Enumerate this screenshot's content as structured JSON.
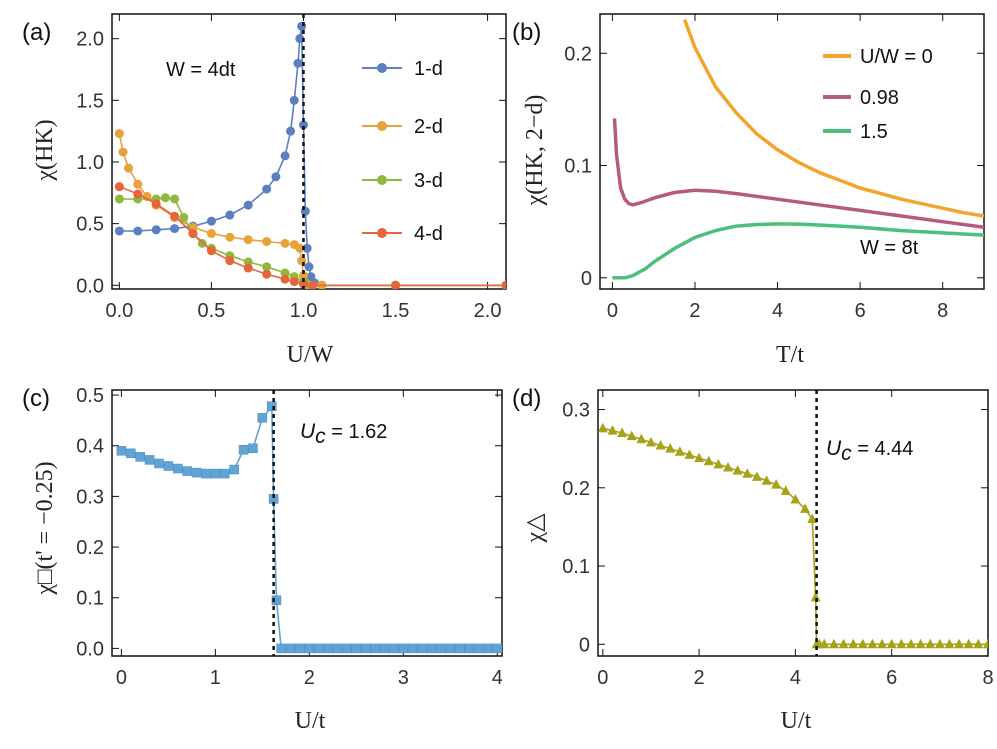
{
  "colors": {
    "blue": "#5b7fbf",
    "orange": "#e8a23a",
    "green": "#90b83b",
    "red": "#e8643a",
    "orange_line": "#f2a42d",
    "purple_line": "#b45b7e",
    "green_line": "#4bbf7c",
    "lightblue": "#5fa4d4",
    "olive": "#a6a21a"
  },
  "chart_data": [
    {
      "id": "a",
      "type": "line",
      "panel_label": "(a)",
      "xlabel": "U/W",
      "ylabel": "χ(HK)",
      "xlim": [
        -0.04,
        2.1
      ],
      "ylim": [
        -0.03,
        2.2
      ],
      "xticks": [
        0.0,
        0.5,
        1.0,
        1.5,
        2.0
      ],
      "xtick_labels": [
        "0.0",
        "0.5",
        "1.0",
        "1.5",
        "2.0"
      ],
      "yticks": [
        0.0,
        0.5,
        1.0,
        1.5,
        2.0
      ],
      "ytick_labels": [
        "0.0",
        "0.5",
        "1.0",
        "1.5",
        "2.0"
      ],
      "annotation": "W = 4dt",
      "vline": 1.0,
      "legend": [
        "1-d",
        "2-d",
        "3-d",
        "4-d"
      ],
      "series": [
        {
          "name": "1-d",
          "color_key": "blue",
          "marker": "circle",
          "x": [
            0.0,
            0.1,
            0.2,
            0.3,
            0.4,
            0.5,
            0.6,
            0.7,
            0.8,
            0.85,
            0.9,
            0.93,
            0.95,
            0.97,
            0.98,
            0.99,
            1.0,
            1.01,
            1.02,
            1.03,
            1.04,
            1.06,
            1.1,
            1.5,
            2.1
          ],
          "y": [
            0.44,
            0.44,
            0.45,
            0.46,
            0.48,
            0.52,
            0.57,
            0.65,
            0.78,
            0.88,
            1.05,
            1.25,
            1.5,
            1.8,
            2.0,
            2.1,
            1.3,
            0.6,
            0.3,
            0.15,
            0.07,
            0.02,
            0.0,
            0.0,
            0.0
          ]
        },
        {
          "name": "2-d",
          "color_key": "orange",
          "marker": "circle",
          "x": [
            0.0,
            0.02,
            0.05,
            0.1,
            0.15,
            0.2,
            0.3,
            0.4,
            0.5,
            0.6,
            0.7,
            0.8,
            0.9,
            0.95,
            0.98,
            0.99,
            1.0,
            1.01,
            1.02,
            1.05,
            1.1,
            1.5,
            2.1
          ],
          "y": [
            1.23,
            1.08,
            0.95,
            0.82,
            0.72,
            0.65,
            0.55,
            0.47,
            0.42,
            0.39,
            0.37,
            0.355,
            0.34,
            0.33,
            0.3,
            0.2,
            0.08,
            0.02,
            0.0,
            0.0,
            0.0,
            0.0,
            0.0
          ]
        },
        {
          "name": "3-d",
          "color_key": "green",
          "marker": "circle",
          "x": [
            0.0,
            0.1,
            0.2,
            0.25,
            0.3,
            0.35,
            0.4,
            0.45,
            0.5,
            0.6,
            0.7,
            0.8,
            0.9,
            0.95,
            1.0,
            1.01,
            1.05,
            1.5,
            2.1
          ],
          "y": [
            0.7,
            0.7,
            0.7,
            0.71,
            0.7,
            0.55,
            0.42,
            0.34,
            0.3,
            0.24,
            0.19,
            0.15,
            0.1,
            0.07,
            0.03,
            0.0,
            0.0,
            0.0,
            0.0
          ]
        },
        {
          "name": "4-d",
          "color_key": "red",
          "marker": "circle",
          "x": [
            0.0,
            0.1,
            0.2,
            0.3,
            0.4,
            0.5,
            0.6,
            0.7,
            0.8,
            0.9,
            0.95,
            1.0,
            1.05,
            1.5,
            2.1
          ],
          "y": [
            0.8,
            0.74,
            0.66,
            0.56,
            0.42,
            0.28,
            0.2,
            0.14,
            0.09,
            0.05,
            0.03,
            0.01,
            0.0,
            0.0,
            0.0
          ]
        }
      ]
    },
    {
      "id": "b",
      "type": "line",
      "panel_label": "(b)",
      "xlabel": "T/t",
      "ylabel": "χ(HK, 2−d)",
      "xlim": [
        -0.3,
        9.0
      ],
      "ylim": [
        -0.01,
        0.235
      ],
      "xticks": [
        0,
        2,
        4,
        6,
        8
      ],
      "xtick_labels": [
        "0",
        "2",
        "4",
        "6",
        "8"
      ],
      "yticks": [
        0,
        0.1,
        0.2
      ],
      "ytick_labels": [
        "0",
        "0.1",
        "0.2"
      ],
      "annotation": "W = 8t",
      "legend": [
        "U/W = 0",
        "0.98",
        "1.5"
      ],
      "series": [
        {
          "name": "U/W = 0",
          "color_key": "orange_line",
          "x": [
            1.75,
            2.0,
            2.5,
            3.0,
            3.5,
            4.0,
            4.5,
            5.0,
            5.5,
            6.0,
            6.5,
            7.0,
            7.5,
            8.0,
            8.5,
            9.0
          ],
          "y": [
            0.23,
            0.205,
            0.17,
            0.147,
            0.128,
            0.114,
            0.103,
            0.094,
            0.087,
            0.08,
            0.075,
            0.07,
            0.066,
            0.062,
            0.058,
            0.055
          ]
        },
        {
          "name": "0.98",
          "color_key": "purple_line",
          "x": [
            0.05,
            0.1,
            0.2,
            0.3,
            0.4,
            0.5,
            0.7,
            1.0,
            1.5,
            2.0,
            2.5,
            3.0,
            4.0,
            5.0,
            6.0,
            7.0,
            8.0,
            9.0
          ],
          "y": [
            0.142,
            0.11,
            0.08,
            0.07,
            0.066,
            0.065,
            0.067,
            0.071,
            0.076,
            0.078,
            0.077,
            0.075,
            0.07,
            0.065,
            0.06,
            0.055,
            0.05,
            0.045
          ]
        },
        {
          "name": "1.5",
          "color_key": "green_line",
          "x": [
            0.0,
            0.3,
            0.5,
            0.8,
            1.0,
            1.5,
            2.0,
            2.5,
            3.0,
            3.5,
            4.0,
            4.5,
            5.0,
            6.0,
            7.0,
            8.0,
            9.0
          ],
          "y": [
            0.0,
            0.0,
            0.002,
            0.008,
            0.014,
            0.026,
            0.036,
            0.042,
            0.046,
            0.0475,
            0.048,
            0.0478,
            0.047,
            0.045,
            0.042,
            0.04,
            0.038
          ]
        }
      ]
    },
    {
      "id": "c",
      "type": "line",
      "panel_label": "(c)",
      "xlabel": "U/t",
      "ylabel": "χ□(t' = −0.25)",
      "xlim": [
        -0.1,
        4.05
      ],
      "ylim": [
        -0.015,
        0.51
      ],
      "xticks": [
        0,
        1,
        2,
        3,
        4
      ],
      "xtick_labels": [
        "0",
        "1",
        "2",
        "3",
        "4"
      ],
      "yticks": [
        0.0,
        0.1,
        0.2,
        0.3,
        0.4,
        0.5
      ],
      "ytick_labels": [
        "0.0",
        "0.1",
        "0.2",
        "0.3",
        "0.4",
        "0.5"
      ],
      "annotation_symbol": "U",
      "annotation_subscript": "c",
      "annotation_value": " = 1.62",
      "vline": 1.62,
      "series": [
        {
          "name": "chi-square",
          "color_key": "lightblue",
          "marker": "square",
          "x": [
            0.0,
            0.1,
            0.2,
            0.3,
            0.4,
            0.5,
            0.6,
            0.7,
            0.8,
            0.9,
            1.0,
            1.1,
            1.2,
            1.3,
            1.4,
            1.5,
            1.6,
            1.62,
            1.65,
            1.7,
            1.8,
            1.9,
            2.0,
            2.1,
            2.2,
            2.3,
            2.4,
            2.5,
            2.6,
            2.7,
            2.8,
            2.9,
            3.0,
            3.1,
            3.2,
            3.3,
            3.4,
            3.5,
            3.6,
            3.7,
            3.8,
            3.9,
            4.0
          ],
          "y": [
            0.39,
            0.385,
            0.378,
            0.372,
            0.365,
            0.36,
            0.355,
            0.35,
            0.347,
            0.345,
            0.345,
            0.345,
            0.353,
            0.392,
            0.395,
            0.455,
            0.478,
            0.295,
            0.095,
            0.0,
            0.0,
            0.0,
            0.0,
            0.0,
            0.0,
            0.0,
            0.0,
            0.0,
            0.0,
            0.0,
            0.0,
            0.0,
            0.0,
            0.0,
            0.0,
            0.0,
            0.0,
            0.0,
            0.0,
            0.0,
            0.0,
            0.0,
            0.0
          ]
        }
      ]
    },
    {
      "id": "d",
      "type": "line",
      "panel_label": "(d)",
      "xlabel": "U/t",
      "ylabel": "χ△",
      "xlim": [
        -0.1,
        8.0
      ],
      "ylim": [
        -0.015,
        0.325
      ],
      "xticks": [
        0,
        2,
        4,
        6,
        8
      ],
      "xtick_labels": [
        "0",
        "2",
        "4",
        "6",
        "8"
      ],
      "yticks": [
        0.0,
        0.1,
        0.2,
        0.3
      ],
      "ytick_labels": [
        "0",
        "0.1",
        "0.2",
        "0.3"
      ],
      "annotation_symbol": "U",
      "annotation_subscript": "c",
      "annotation_value": " = 4.44",
      "vline": 4.44,
      "series": [
        {
          "name": "chi-triangle",
          "color_key": "olive",
          "marker": "triangle",
          "x": [
            0.0,
            0.2,
            0.4,
            0.6,
            0.8,
            1.0,
            1.2,
            1.4,
            1.6,
            1.8,
            2.0,
            2.2,
            2.4,
            2.6,
            2.8,
            3.0,
            3.2,
            3.4,
            3.6,
            3.8,
            4.0,
            4.2,
            4.35,
            4.42,
            4.44,
            4.5,
            4.6,
            4.8,
            5.0,
            5.2,
            5.4,
            5.6,
            5.8,
            6.0,
            6.2,
            6.4,
            6.6,
            6.8,
            7.0,
            7.2,
            7.4,
            7.6,
            7.8,
            8.0
          ],
          "y": [
            0.276,
            0.273,
            0.27,
            0.266,
            0.262,
            0.258,
            0.254,
            0.25,
            0.246,
            0.242,
            0.238,
            0.234,
            0.23,
            0.226,
            0.222,
            0.218,
            0.214,
            0.209,
            0.204,
            0.196,
            0.185,
            0.173,
            0.16,
            0.06,
            0.0,
            0.0,
            0.0,
            0.0,
            0.0,
            0.0,
            0.0,
            0.0,
            0.0,
            0.0,
            0.0,
            0.0,
            0.0,
            0.0,
            0.0,
            0.0,
            0.0,
            0.0,
            0.0,
            0.0
          ]
        }
      ]
    }
  ]
}
